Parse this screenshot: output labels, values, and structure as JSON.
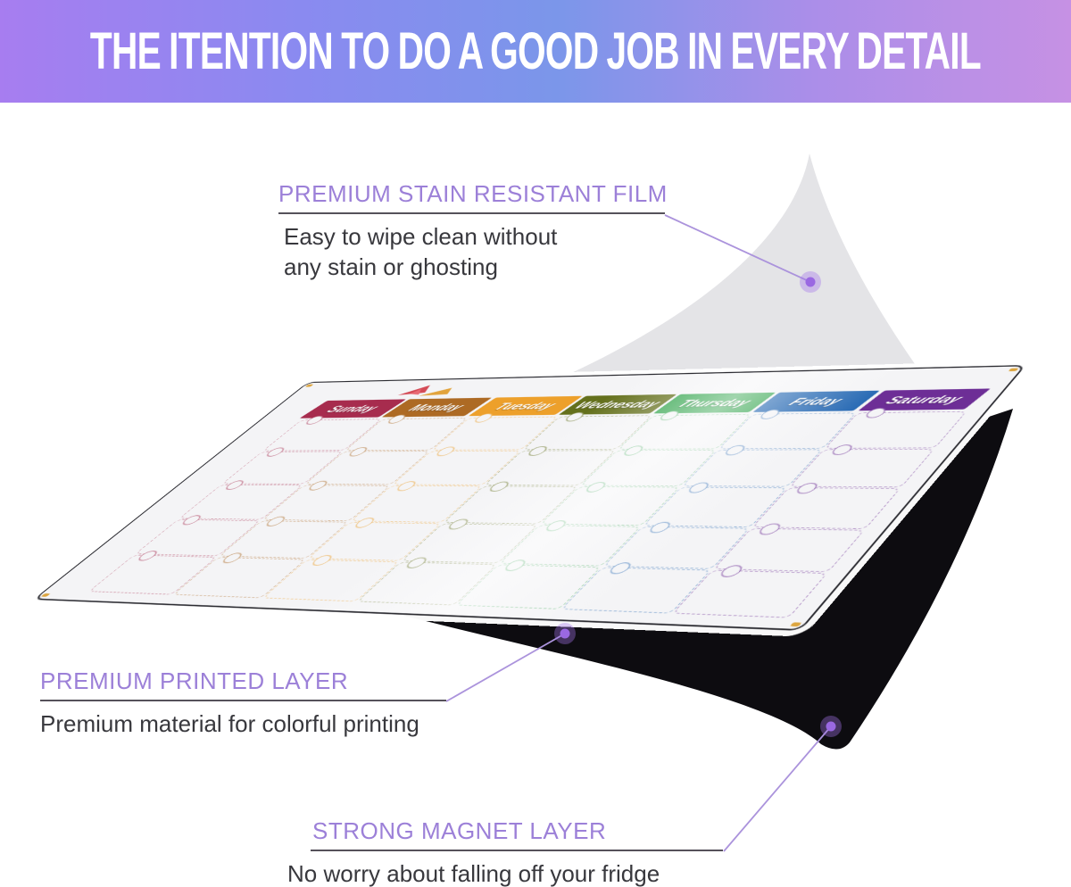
{
  "banner": {
    "title": "THE ITENTION TO DO A GOOD JOB IN EVERY DETAIL",
    "gradient": [
      "#a77df0",
      "#8a8af0",
      "#7b96ea",
      "#ab8ee9",
      "#c691e4"
    ]
  },
  "callouts": {
    "film": {
      "title": "PREMIUM STAIN RESISTANT FILM",
      "lines": [
        "Easy to wipe clean without",
        "any stain or ghosting"
      ]
    },
    "printed": {
      "title": "PREMIUM PRINTED LAYER",
      "lines": [
        "Premium material for colorful printing"
      ]
    },
    "magnet": {
      "title": "STRONG MAGNET LAYER",
      "lines": [
        "No worry about falling off your fridge"
      ]
    }
  },
  "calendar": {
    "days": [
      {
        "label": "Sunday",
        "color": "#a72c4e"
      },
      {
        "label": "Monday",
        "color": "#ad6a24"
      },
      {
        "label": "Tuesday",
        "color": "#eda02b"
      },
      {
        "label": "Wednesday",
        "color": "#64701c"
      },
      {
        "label": "Thursday",
        "color": "#2fa34a"
      },
      {
        "label": "Friday",
        "color": "#2b6cb5"
      },
      {
        "label": "Saturday",
        "color": "#6d2e96"
      }
    ],
    "grid_rows": 5,
    "grid_cols": 7
  },
  "theme": {
    "accent": "#9c80d8",
    "connector": "#ab93dc",
    "dot": "#9a68e2",
    "dot_halo": "rgba(164,116,235,0.38)",
    "text": "#38383d",
    "rule": "#55515a",
    "film": "#e4e4e7",
    "magnet": "#0d0c10",
    "board_bg": "#f4f4f6",
    "board_edge": "#2b2b31",
    "corner_mark": "#dca53f",
    "day_text": "#ffffff"
  }
}
